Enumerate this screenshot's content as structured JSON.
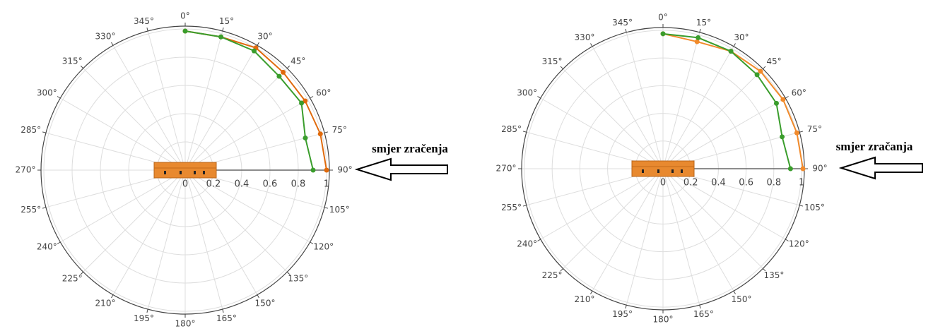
{
  "chart_data": [
    {
      "type": "polar",
      "rlim": [
        0,
        1.02
      ],
      "rticks": [
        0,
        0.2,
        0.4,
        0.6,
        0.8,
        1
      ],
      "thetaticks": [
        {
          "value": 0,
          "label": "0°"
        },
        {
          "value": 15,
          "label": "15°"
        },
        {
          "value": 30,
          "label": "30°"
        },
        {
          "value": 45,
          "label": "45°"
        },
        {
          "value": 60,
          "label": "60°"
        },
        {
          "value": 75,
          "label": "75°"
        },
        {
          "value": 90,
          "label": "90°"
        },
        {
          "value": 105,
          "label": "105°"
        },
        {
          "value": 120,
          "label": "120°"
        },
        {
          "value": 135,
          "label": "135°"
        },
        {
          "value": 150,
          "label": "150°"
        },
        {
          "value": 165,
          "label": "165°"
        },
        {
          "value": 180,
          "label": "180°"
        },
        {
          "value": 195,
          "label": "195°"
        },
        {
          "value": 210,
          "label": "210°"
        },
        {
          "value": 225,
          "label": "225°"
        },
        {
          "value": 240,
          "label": "240°"
        },
        {
          "value": 255,
          "label": "255°"
        },
        {
          "value": 270,
          "label": "270°"
        },
        {
          "value": 285,
          "label": "285°"
        },
        {
          "value": 300,
          "label": "300°"
        },
        {
          "value": 315,
          "label": "315°"
        },
        {
          "value": 330,
          "label": "330°"
        },
        {
          "value": 345,
          "label": "345°"
        }
      ],
      "theta": [
        0,
        15,
        30,
        45,
        60,
        75,
        90
      ],
      "series": [
        {
          "color": "#e06a0c",
          "values": [
            0.985,
            0.977,
            1.0,
            0.98,
            0.98,
            0.99,
            1.0
          ]
        },
        {
          "color": "#3a9d2c",
          "values": [
            0.985,
            0.977,
            0.975,
            0.94,
            0.95,
            0.88,
            0.905
          ]
        }
      ],
      "annotation": "smjer zračenja",
      "grid": true
    },
    {
      "type": "polar",
      "rlim": [
        0,
        1.02
      ],
      "rticks": [
        0,
        0.2,
        0.4,
        0.6,
        0.8,
        1
      ],
      "thetaticks": [
        {
          "value": 0,
          "label": "0°"
        },
        {
          "value": 15,
          "label": "15°"
        },
        {
          "value": 30,
          "label": "30°"
        },
        {
          "value": 45,
          "label": "45°"
        },
        {
          "value": 60,
          "label": "60°"
        },
        {
          "value": 75,
          "label": "75°"
        },
        {
          "value": 90,
          "label": "90°"
        },
        {
          "value": 105,
          "label": "105°"
        },
        {
          "value": 120,
          "label": "120°"
        },
        {
          "value": 135,
          "label": "135°"
        },
        {
          "value": 150,
          "label": "150°"
        },
        {
          "value": 165,
          "label": "165°"
        },
        {
          "value": 180,
          "label": "180°"
        },
        {
          "value": 195,
          "label": "195°"
        },
        {
          "value": 210,
          "label": "210°"
        },
        {
          "value": 225,
          "label": "225°"
        },
        {
          "value": 240,
          "label": "240°"
        },
        {
          "value": 255,
          "label": "255°"
        },
        {
          "value": 270,
          "label": "270°"
        },
        {
          "value": 285,
          "label": "285°"
        },
        {
          "value": 300,
          "label": "300°"
        },
        {
          "value": 315,
          "label": "315°"
        },
        {
          "value": 330,
          "label": "330°"
        },
        {
          "value": 345,
          "label": "345°"
        }
      ],
      "theta": [
        0,
        15,
        30,
        45,
        60,
        75,
        90
      ],
      "series": [
        {
          "color": "#f28a2a",
          "values": [
            0.975,
            0.95,
            0.98,
            0.995,
            1.0,
            1.0,
            1.01
          ]
        },
        {
          "color": "#3a9d2c",
          "values": [
            0.975,
            0.98,
            0.98,
            0.96,
            0.945,
            0.89,
            0.92
          ]
        }
      ],
      "annotation": "smjer zračanja",
      "grid": true
    }
  ]
}
